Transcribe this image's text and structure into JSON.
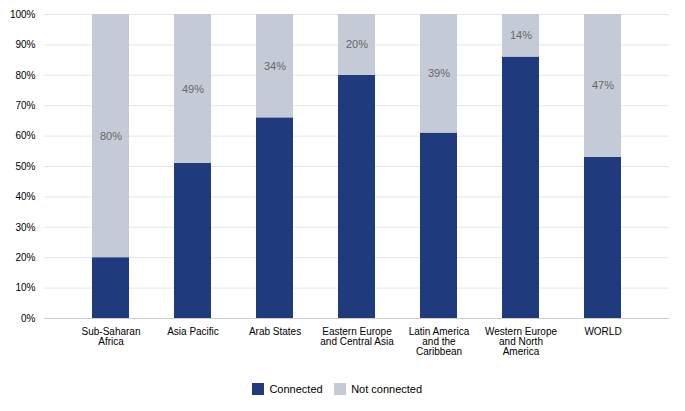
{
  "chart_data": {
    "type": "bar",
    "stacked": true,
    "categories": [
      "Sub-Saharan\nAfrica",
      "Asia Pacific",
      "Arab States",
      "Eastern Europe\nand Central Asia",
      "Latin America\nand the\nCaribbean",
      "Western Europe\nand North\nAmerica",
      "WORLD"
    ],
    "series": [
      {
        "name": "Connected",
        "color": "#1F3A7D",
        "values": [
          20,
          51,
          66,
          80,
          61,
          86,
          53
        ]
      },
      {
        "name": "Not connected",
        "color": "#C5CBD6",
        "values": [
          80,
          49,
          34,
          20,
          39,
          14,
          47
        ],
        "data_labels": true,
        "value_labels": [
          "80%",
          "49%",
          "34%",
          "20%",
          "39%",
          "14%",
          "47%"
        ]
      }
    ],
    "ylim": [
      0,
      100
    ],
    "yticks": [
      {
        "value": 0,
        "label": "0%"
      },
      {
        "value": 10,
        "label": "10%"
      },
      {
        "value": 20,
        "label": "20%"
      },
      {
        "value": 30,
        "label": "30%"
      },
      {
        "value": 40,
        "label": "40%"
      },
      {
        "value": 50,
        "label": "50%"
      },
      {
        "value": 60,
        "label": "60%"
      },
      {
        "value": 70,
        "label": "70%"
      },
      {
        "value": 80,
        "label": "80%"
      },
      {
        "value": 90,
        "label": "90%"
      },
      {
        "value": 100,
        "label": "100%"
      }
    ],
    "grid": true,
    "legend": "bottom"
  }
}
